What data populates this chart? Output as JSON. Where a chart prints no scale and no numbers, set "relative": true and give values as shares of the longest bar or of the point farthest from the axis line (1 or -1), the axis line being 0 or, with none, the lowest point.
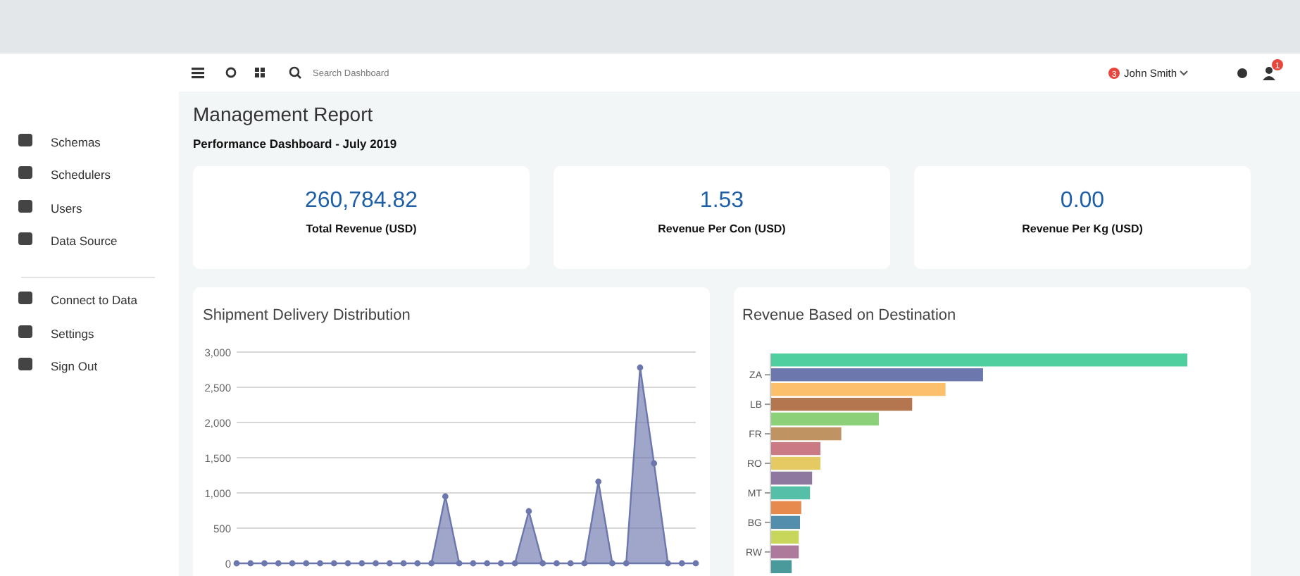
{
  "chart_data": [
    {
      "type": "other",
      "title": "Management Report",
      "subtitle": "Performance Dashboard - July 2019",
      "annotations": [
        "260,784.82",
        "Total Revenue (USD)",
        "1.53",
        "Revenue Per Con (USD)",
        "0.00",
        "Revenue Per Kg (USD)",
        "Schemas",
        "Schedulers",
        "Users",
        "Data Source",
        "Connect to Data",
        "Settings",
        "Sign Out",
        "Search Dashboard",
        "John Smith",
        "3",
        "1"
      ]
    },
    {
      "type": "area",
      "title": "Shipment Delivery Distribution",
      "categories": [
        null,
        null,
        null,
        null,
        null,
        null,
        null,
        null,
        null,
        null,
        null,
        null,
        null,
        null,
        null,
        null,
        null,
        null,
        null,
        null,
        null,
        null,
        null,
        null,
        null,
        null,
        null,
        null,
        null,
        null,
        null,
        null,
        null,
        null
      ],
      "values": [
        0,
        0,
        0,
        0,
        0,
        0,
        0,
        0,
        0,
        0,
        0,
        0,
        0,
        0,
        0,
        950,
        0,
        0,
        0,
        0,
        0,
        740,
        0,
        0,
        0,
        0,
        1160,
        0,
        0,
        2780,
        1420,
        0,
        0,
        0
      ],
      "color": "#6b77ad",
      "ylim": [
        0,
        3000
      ],
      "yticks": [
        {
          "value": 0,
          "label": "0"
        },
        {
          "value": 500,
          "label": "500"
        },
        {
          "value": 1000,
          "label": "1,000"
        },
        {
          "value": 1500,
          "label": "1,500"
        },
        {
          "value": 2000,
          "label": "2,000"
        },
        {
          "value": 2500,
          "label": "2,500"
        },
        {
          "value": 3000,
          "label": "3,000"
        }
      ],
      "grid": "y",
      "marker": "circle",
      "tick_labels": "y"
    },
    {
      "type": "bar",
      "orientation": "horizontal",
      "relative": true,
      "title": "Revenue Based on Destination",
      "categories": [
        null,
        "ZA",
        null,
        "LB",
        null,
        "FR",
        null,
        "RO",
        null,
        "MT",
        null,
        "BG",
        null,
        "RW",
        null
      ],
      "values": [
        1,
        0.51,
        0.42,
        0.34,
        0.26,
        0.17,
        0.12,
        0.12,
        0.1,
        0.095,
        0.074,
        0.071,
        0.068,
        0.068,
        0.051
      ],
      "colors": [
        "#4fcf9f",
        "#6b77ad",
        "#fcc06c",
        "#b3764f",
        "#8cd07a",
        "#c09462",
        "#c97a85",
        "#e5c962",
        "#8e78a0",
        "#56bfa8",
        "#e68a4d",
        "#538fad",
        "#c8d65c",
        "#ae7a9c",
        "#4a9a9c"
      ]
    }
  ]
}
